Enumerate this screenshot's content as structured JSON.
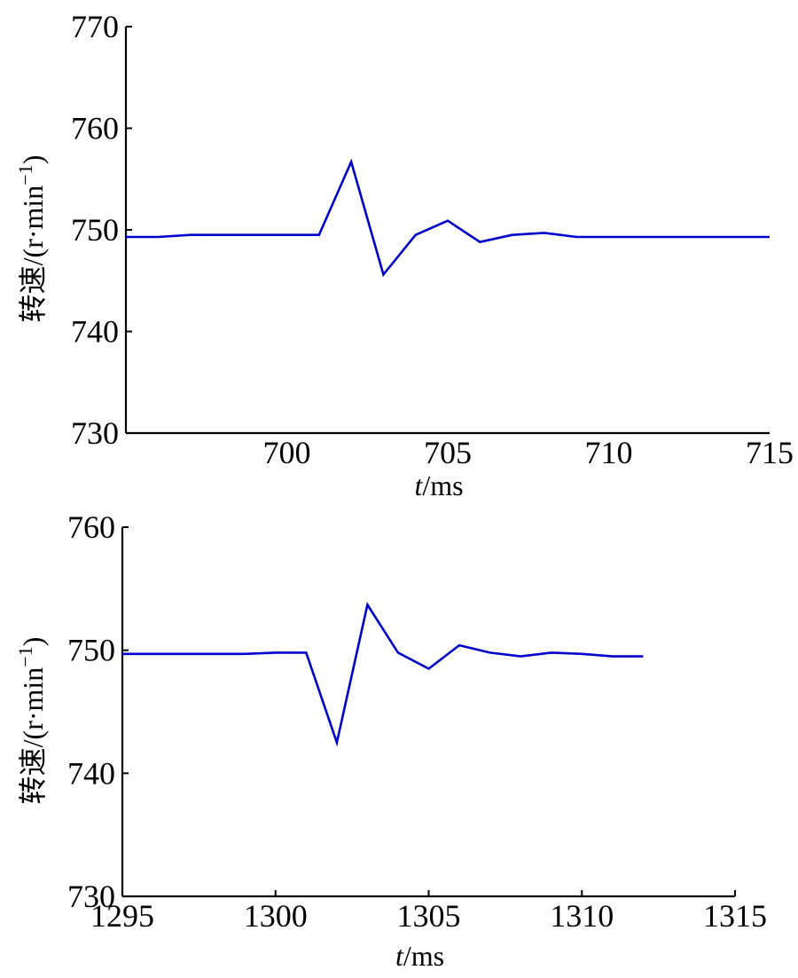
{
  "chart_data": [
    {
      "type": "line",
      "xlabel": {
        "var": "t",
        "unit": "/ms"
      },
      "ylabel": {
        "text": "转速/(r·min",
        "sup": "−1",
        "close": ")"
      },
      "xlim": [
        695,
        715
      ],
      "ylim": [
        730,
        770
      ],
      "xticks": [
        700,
        705,
        710,
        715
      ],
      "xtick_labels": [
        "700",
        "705",
        "710",
        "715"
      ],
      "yticks": [
        730,
        740,
        750,
        760,
        770
      ],
      "ytick_labels": [
        "730",
        "740",
        "750",
        "760",
        "770"
      ],
      "grid": false,
      "series": [
        {
          "color": "#0000cc",
          "x": [
            695,
            696,
            697,
            698,
            699,
            700,
            701,
            702,
            703,
            704,
            705,
            706,
            707,
            708,
            709,
            710,
            711,
            712,
            713,
            714,
            715
          ],
          "y": [
            749.3,
            749.3,
            749.5,
            749.5,
            749.5,
            749.5,
            749.5,
            756.7,
            745.6,
            749.5,
            750.9,
            748.8,
            749.5,
            749.7,
            749.3,
            749.3,
            749.3,
            749.3,
            749.3,
            749.3,
            749.3
          ]
        }
      ]
    },
    {
      "type": "line",
      "xlabel": {
        "var": "t",
        "unit": "/ms"
      },
      "ylabel": {
        "text": "转速/(r·min",
        "sup": "−1",
        "close": ")"
      },
      "xlim": [
        1295,
        1315
      ],
      "ylim": [
        730,
        760
      ],
      "xticks": [
        1295,
        1300,
        1305,
        1310,
        1315
      ],
      "xtick_labels": [
        "1295",
        "1300",
        "1305",
        "1310",
        "1315"
      ],
      "yticks": [
        730,
        740,
        750,
        760
      ],
      "ytick_labels": [
        "730",
        "740",
        "750",
        "760"
      ],
      "grid": false,
      "series": [
        {
          "color": "#0000cc",
          "x": [
            1295,
            1296,
            1297,
            1298,
            1299,
            1300,
            1301,
            1302,
            1303,
            1304,
            1305,
            1306,
            1307,
            1308,
            1309,
            1310,
            1311,
            1312
          ],
          "y": [
            749.7,
            749.7,
            749.7,
            749.7,
            749.7,
            749.8,
            749.8,
            742.5,
            753.7,
            749.8,
            748.5,
            750.4,
            749.8,
            749.5,
            749.8,
            749.7,
            749.5,
            749.5
          ]
        }
      ]
    }
  ]
}
